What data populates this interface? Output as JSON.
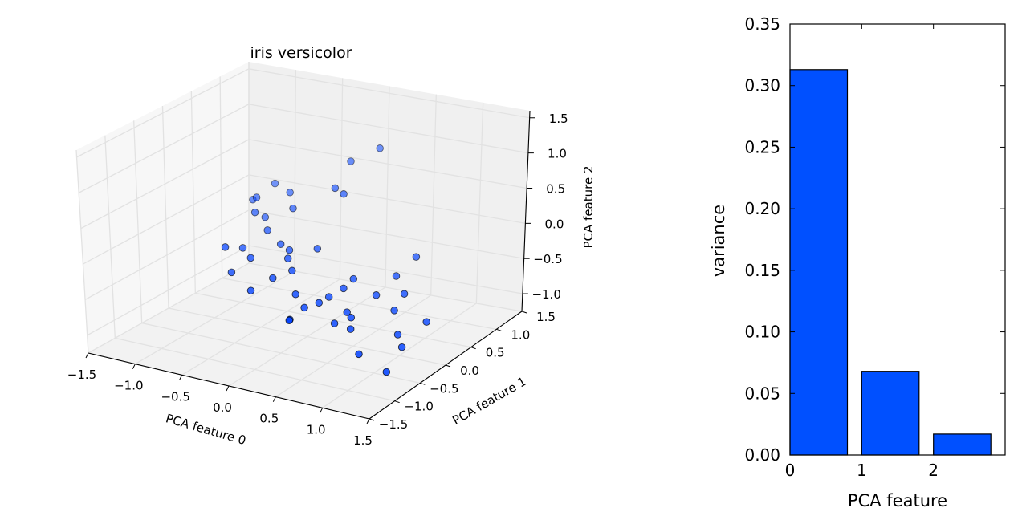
{
  "chart_data": [
    {
      "type": "scatter",
      "projection": "3d",
      "title": "iris versicolor",
      "xlabel": "PCA feature 0",
      "ylabel": "PCA feature 1",
      "zlabel": "PCA feature 2",
      "xlim": [
        -1.5,
        1.5
      ],
      "ylim": [
        -1.5,
        1.5
      ],
      "zlim": [
        -1.25,
        1.6
      ],
      "xticks": [
        -1.5,
        -1.0,
        -0.5,
        0.0,
        0.5,
        1.0,
        1.5
      ],
      "yticks": [
        -1.5,
        -1.0,
        -0.5,
        0.0,
        0.5,
        1.0,
        1.5
      ],
      "zticks": [
        -1.0,
        -0.5,
        0.0,
        0.5,
        1.0,
        1.5
      ],
      "tick_labels": {
        "x": [
          "−1.5",
          "−1.0",
          "−0.5",
          "0.0",
          "0.5",
          "1.0",
          "1.5"
        ],
        "y": [
          "−1.5",
          "−1.0",
          "−0.5",
          "0.0",
          "0.5",
          "1.0",
          "1.5"
        ],
        "z": [
          "−1.0",
          "−0.5",
          "0.0",
          "0.5",
          "1.0",
          "1.5"
        ]
      },
      "grid": true,
      "marker_color": "#0040ff",
      "points": [
        {
          "x": -1.1,
          "y": 0.9,
          "z": 0.0
        },
        {
          "x": -1.0,
          "y": 0.8,
          "z": 0.1
        },
        {
          "x": -0.95,
          "y": 1.05,
          "z": 0.2
        },
        {
          "x": -0.9,
          "y": 0.6,
          "z": 0.0
        },
        {
          "x": -0.85,
          "y": 0.7,
          "z": -0.1
        },
        {
          "x": -0.8,
          "y": 0.2,
          "z": -0.3
        },
        {
          "x": -0.7,
          "y": 0.9,
          "z": 0.2
        },
        {
          "x": -0.65,
          "y": 0.4,
          "z": -0.1
        },
        {
          "x": -0.55,
          "y": 0.7,
          "z": 0.1
        },
        {
          "x": -0.75,
          "y": -0.1,
          "z": -0.5
        },
        {
          "x": -0.6,
          "y": 0.0,
          "z": -0.3
        },
        {
          "x": -0.45,
          "y": 0.3,
          "z": -0.2
        },
        {
          "x": -0.3,
          "y": 0.2,
          "z": -0.2
        },
        {
          "x": -0.2,
          "y": 0.0,
          "z": -0.2
        },
        {
          "x": -0.1,
          "y": 0.7,
          "z": 0.5
        },
        {
          "x": -0.05,
          "y": 0.9,
          "z": 0.8
        },
        {
          "x": 0.05,
          "y": 0.6,
          "z": 0.5
        },
        {
          "x": 0.2,
          "y": 1.0,
          "z": 1.0
        },
        {
          "x": 0.0,
          "y": 0.2,
          "z": -0.1
        },
        {
          "x": -0.25,
          "y": -0.2,
          "z": -0.4
        },
        {
          "x": -0.1,
          "y": -0.1,
          "z": -0.3
        },
        {
          "x": 0.05,
          "y": -0.3,
          "z": -0.5
        },
        {
          "x": 0.1,
          "y": -0.5,
          "z": -0.75
        },
        {
          "x": 0.15,
          "y": -0.6,
          "z": -0.7
        },
        {
          "x": 0.2,
          "y": -0.4,
          "z": -0.6
        },
        {
          "x": 0.3,
          "y": -0.3,
          "z": -0.55
        },
        {
          "x": 0.35,
          "y": -0.2,
          "z": -0.5
        },
        {
          "x": 0.45,
          "y": -0.1,
          "z": -0.4
        },
        {
          "x": 0.5,
          "y": 0.0,
          "z": -0.3
        },
        {
          "x": 0.6,
          "y": -0.3,
          "z": -0.6
        },
        {
          "x": 0.7,
          "y": -0.4,
          "z": -0.6
        },
        {
          "x": 0.75,
          "y": -0.5,
          "z": -0.7
        },
        {
          "x": 0.8,
          "y": -0.1,
          "z": -0.4
        },
        {
          "x": 0.9,
          "y": 0.1,
          "z": -0.2
        },
        {
          "x": 1.0,
          "y": 0.3,
          "z": 0.0
        },
        {
          "x": 1.05,
          "y": -0.2,
          "z": -0.5
        },
        {
          "x": 0.95,
          "y": -0.7,
          "z": -0.9
        },
        {
          "x": 1.1,
          "y": -0.1,
          "z": -0.3
        },
        {
          "x": 1.2,
          "y": -0.4,
          "z": -0.7
        },
        {
          "x": 1.3,
          "y": -0.5,
          "z": -0.8
        },
        {
          "x": 1.3,
          "y": -0.8,
          "z": -1.0
        },
        {
          "x": 1.45,
          "y": -0.3,
          "z": -0.5
        },
        {
          "x": -0.4,
          "y": -0.35,
          "z": -0.55
        },
        {
          "x": -0.9,
          "y": 0.05,
          "z": -0.25
        },
        {
          "x": 0.55,
          "y": -0.45,
          "z": -0.7
        }
      ]
    },
    {
      "type": "bar",
      "categories": [
        0,
        1,
        2
      ],
      "values": [
        0.313,
        0.068,
        0.017
      ],
      "xlabel": "PCA feature",
      "ylabel": "variance",
      "ylim": [
        0,
        0.35
      ],
      "xlim": [
        0,
        3
      ],
      "yticks": [
        0.0,
        0.05,
        0.1,
        0.15,
        0.2,
        0.25,
        0.3,
        0.35
      ],
      "ytick_labels": [
        "0.00",
        "0.05",
        "0.10",
        "0.15",
        "0.20",
        "0.25",
        "0.30",
        "0.35"
      ],
      "xticks": [
        0,
        1,
        2
      ],
      "xtick_labels": [
        "0",
        "1",
        "2"
      ],
      "bar_color": "#0050ff",
      "grid": false
    }
  ]
}
